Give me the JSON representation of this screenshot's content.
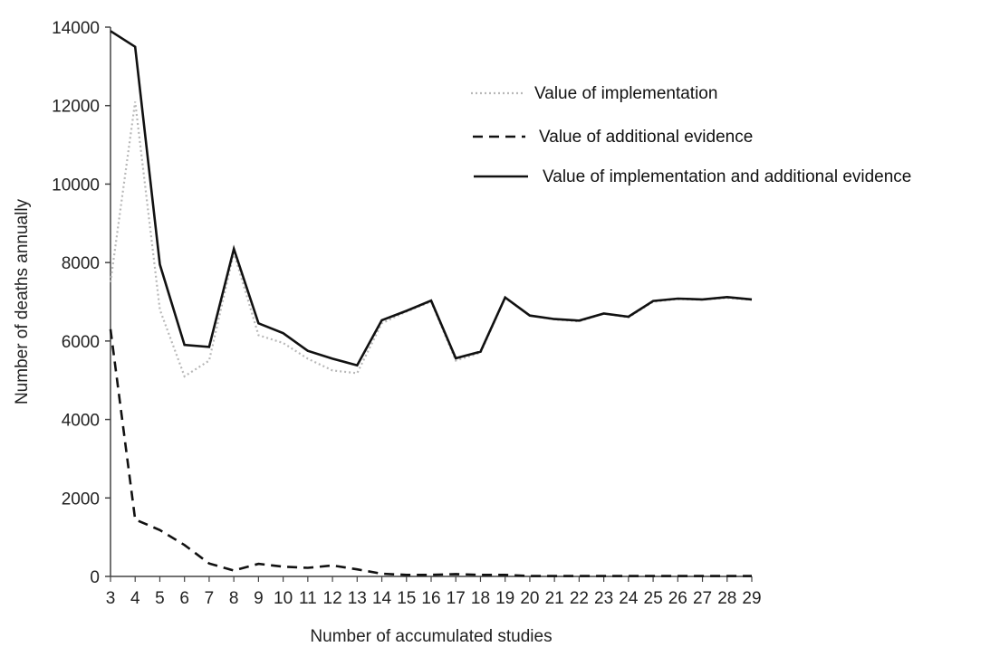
{
  "chart_data": {
    "type": "line",
    "title": "",
    "xlabel": "Number of accumulated studies",
    "ylabel": "Number of deaths annually",
    "ylim": [
      0,
      14000
    ],
    "yticks": [
      "0",
      "2000",
      "4000",
      "6000",
      "8000",
      "10000",
      "12000",
      "14000"
    ],
    "categories": [
      "3",
      "4",
      "5",
      "6",
      "7",
      "8",
      "9",
      "10",
      "11",
      "12",
      "13",
      "14",
      "15",
      "16",
      "17",
      "18",
      "19",
      "20",
      "21",
      "22",
      "23",
      "24",
      "25",
      "26",
      "27",
      "28",
      "29"
    ],
    "grid": false,
    "legend_position": "top-right",
    "series": [
      {
        "name": "Value of implementation",
        "style": "dotted",
        "color": "#b8b8b8",
        "values": [
          7500,
          12100,
          6800,
          5100,
          5500,
          8250,
          6150,
          5950,
          5550,
          5250,
          5180,
          6450,
          6750,
          7000,
          5500,
          5700,
          7100,
          6650,
          6550,
          6500,
          6700,
          6600,
          7000,
          7070,
          7050,
          7100,
          7050
        ]
      },
      {
        "name": "Value of additional evidence",
        "style": "dashed",
        "color": "#111111",
        "values": [
          6300,
          1450,
          1180,
          800,
          330,
          150,
          320,
          250,
          220,
          280,
          180,
          70,
          40,
          40,
          60,
          40,
          40,
          10,
          10,
          10,
          10,
          10,
          10,
          10,
          10,
          10,
          10
        ]
      },
      {
        "name": "Value of implementation and additional evidence",
        "style": "solid",
        "color": "#111111",
        "values": [
          13900,
          13500,
          7950,
          5900,
          5850,
          8350,
          6450,
          6200,
          5750,
          5550,
          5380,
          6530,
          6770,
          7030,
          5560,
          5730,
          7110,
          6650,
          6560,
          6520,
          6700,
          6620,
          7020,
          7080,
          7060,
          7120,
          7060
        ]
      }
    ]
  }
}
